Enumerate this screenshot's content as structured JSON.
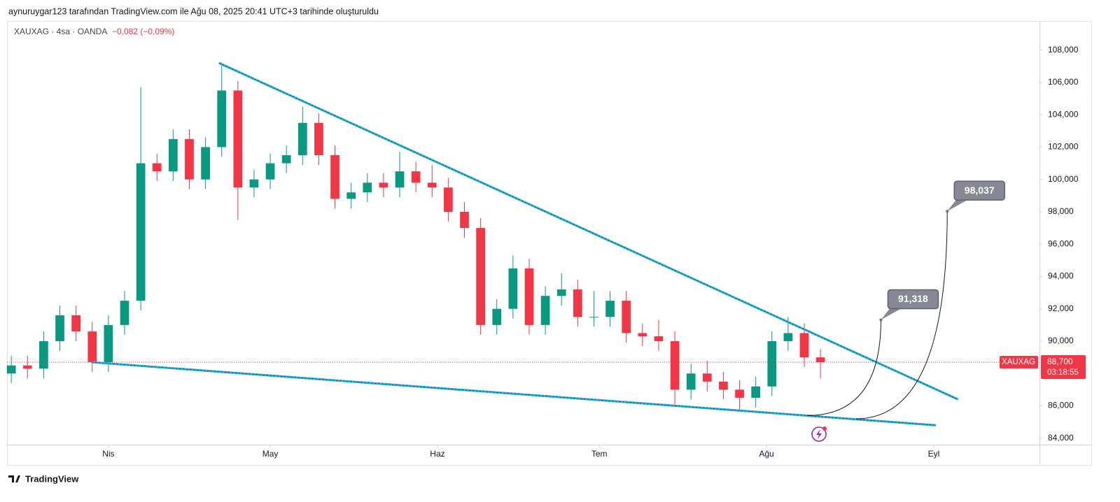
{
  "header": {
    "title": "aynuruygar123 tarafından TradingView.com ile Ağu 08, 2025 20:41 UTC+3 tarihinde oluşturuldu"
  },
  "footer": {
    "brand": "TradingView"
  },
  "chart_data": {
    "type": "candlestick",
    "symbol": "XAUXAG · 4sa · OANDA",
    "change": "−0,082 (−0,09%)",
    "up_color": "#089981",
    "down_color": "#f23645",
    "trend_color": "#2eb3d6",
    "price_line_color": "#f23645",
    "x": [
      -18,
      -15,
      -12,
      -9,
      -6,
      -3,
      0,
      3,
      6,
      9,
      12,
      15,
      18,
      21,
      24,
      27,
      30,
      33,
      36,
      39,
      42,
      45,
      48,
      51,
      54,
      57,
      60,
      63,
      66,
      69,
      72,
      75,
      78,
      81,
      84,
      87,
      90,
      93,
      96,
      99,
      102,
      105,
      108,
      111,
      114,
      117,
      120,
      123,
      126,
      129,
      132
    ],
    "open": [
      88000,
      88500,
      88300,
      90000,
      91600,
      90600,
      88700,
      91000,
      92500,
      101000,
      100500,
      102500,
      100000,
      102000,
      105500,
      99500,
      100000,
      101000,
      101500,
      103500,
      101500,
      98800,
      99200,
      99800,
      99500,
      100500,
      99800,
      99500,
      98000,
      97000,
      91000,
      92000,
      94500,
      91000,
      92800,
      93200,
      91500,
      91500,
      92500,
      90500,
      90300,
      90000,
      87000,
      88000,
      87500,
      87000,
      86500,
      87200,
      90000,
      90500,
      89000
    ],
    "high": [
      89100,
      89100,
      90600,
      92200,
      92200,
      91200,
      91600,
      93100,
      105700,
      101600,
      103100,
      103100,
      102600,
      107200,
      106100,
      100600,
      101600,
      102100,
      104500,
      104100,
      102100,
      99800,
      100400,
      100400,
      101700,
      101100,
      100900,
      100100,
      98600,
      97600,
      92600,
      95300,
      95100,
      93400,
      94200,
      93800,
      93100,
      93100,
      93100,
      91100,
      91300,
      90600,
      88600,
      88800,
      88100,
      87600,
      87800,
      90600,
      91500,
      91100,
      89500
    ],
    "low": [
      87400,
      87700,
      87700,
      89400,
      90000,
      88100,
      88100,
      90400,
      91900,
      99900,
      99900,
      99400,
      99400,
      101400,
      97500,
      98900,
      99400,
      100400,
      100900,
      100900,
      98200,
      98200,
      98600,
      98900,
      98900,
      99200,
      98900,
      97400,
      96400,
      90400,
      90400,
      91400,
      90400,
      90400,
      92200,
      90900,
      90900,
      90900,
      89900,
      89700,
      89400,
      86000,
      86400,
      86900,
      86400,
      85700,
      85900,
      86600,
      89400,
      88400,
      87700
    ],
    "close": [
      88500,
      88300,
      90000,
      91600,
      90600,
      88700,
      91000,
      92500,
      101000,
      100500,
      102500,
      100000,
      102000,
      105500,
      99500,
      100000,
      101000,
      101500,
      103500,
      101500,
      98800,
      99200,
      99800,
      99500,
      100500,
      99800,
      99500,
      98000,
      97000,
      91000,
      92000,
      94500,
      91000,
      92800,
      93200,
      91500,
      91500,
      92500,
      90500,
      90300,
      90000,
      87000,
      88000,
      87500,
      87000,
      86500,
      87200,
      90000,
      90500,
      89000,
      88700
    ],
    "xlim": [
      -18.8,
      172.6
    ],
    "xticks": [
      {
        "value": 0,
        "label": "Nis"
      },
      {
        "value": 30,
        "label": "May"
      },
      {
        "value": 61,
        "label": "Haz"
      },
      {
        "value": 91,
        "label": "Tem"
      },
      {
        "value": 122,
        "label": "Ağu"
      },
      {
        "value": 153,
        "label": "Eyl"
      }
    ],
    "ylim": [
      83600,
      109800
    ],
    "yticks": [
      {
        "value": 84000,
        "label": "84,000"
      },
      {
        "value": 86000,
        "label": "86,000"
      },
      {
        "value": 88000,
        "label": "88,000"
      },
      {
        "value": 90000,
        "label": "90,000"
      },
      {
        "value": 92000,
        "label": "92,000"
      },
      {
        "value": 94000,
        "label": "94,000"
      },
      {
        "value": 96000,
        "label": "96,000"
      },
      {
        "value": 98000,
        "label": "98,000"
      },
      {
        "value": 100000,
        "label": "100,000"
      },
      {
        "value": 102000,
        "label": "102,000"
      },
      {
        "value": 104000,
        "label": "104,000"
      },
      {
        "value": 106000,
        "label": "106,000"
      },
      {
        "value": 108000,
        "label": "108,000"
      }
    ],
    "trend_lines": [
      {
        "x": [
          20.5,
          157.5
        ],
        "y": [
          107200,
          86400
        ]
      },
      {
        "x": [
          -3.1,
          153.4
        ],
        "y": [
          88700,
          84800
        ]
      }
    ],
    "projections": [
      {
        "x": [
          129.5,
          143.2
        ],
        "y": [
          85400,
          91318
        ],
        "label": "91,318"
      },
      {
        "x": [
          138.6,
          155.5
        ],
        "y": [
          85200,
          98037
        ],
        "label": "98,037"
      }
    ],
    "last_price": {
      "symbol": "XAUXAG",
      "value": 88700,
      "label": "88,700",
      "countdown": "03:18:55"
    }
  }
}
